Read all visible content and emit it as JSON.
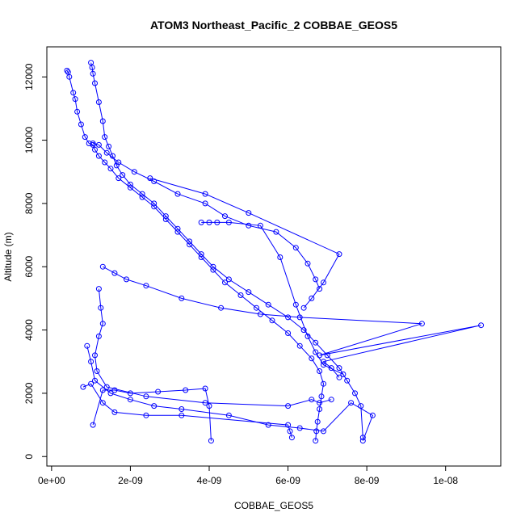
{
  "chart_data": {
    "type": "scatter",
    "title": "ATOM3 Northeast_Pacific_2 COBBAE_GEOS5",
    "xlabel": "COBBAE_GEOS5",
    "ylabel": "Altitude (m)",
    "xlim": [
      -1.2e-10,
      1.14e-08
    ],
    "ylim": [
      -300,
      12950
    ],
    "xticks": [
      {
        "value": 0,
        "label": "0e+00"
      },
      {
        "value": 2e-09,
        "label": "2e-09"
      },
      {
        "value": 4e-09,
        "label": "4e-09"
      },
      {
        "value": 6e-09,
        "label": "6e-09"
      },
      {
        "value": 8e-09,
        "label": "8e-09"
      },
      {
        "value": 1e-08,
        "label": "1e-08"
      }
    ],
    "yticks": [
      {
        "value": 0,
        "label": "0"
      },
      {
        "value": 2000,
        "label": "2000"
      },
      {
        "value": 4000,
        "label": "4000"
      },
      {
        "value": 6000,
        "label": "6000"
      },
      {
        "value": 8000,
        "label": "8000"
      },
      {
        "value": 10000,
        "label": "10000"
      },
      {
        "value": 12000,
        "label": "12000"
      }
    ],
    "grid": false,
    "legend": "none",
    "color": "#0000ff",
    "series": [
      {
        "x": [
          3.9e-10,
          4.2e-10,
          4.5e-10,
          5.5e-10,
          6e-10,
          6.5e-10,
          7.5e-10,
          8.5e-10,
          9.5e-10,
          1.05e-09,
          1.1e-09,
          1.2e-09,
          1.35e-09,
          1.5e-09,
          1.7e-09,
          2e-09,
          2.3e-09,
          2.6e-09,
          2.9e-09,
          3.2e-09,
          3.5e-09,
          3.8e-09,
          4.1e-09,
          4.4e-09,
          4.8e-09,
          5.2e-09,
          5.6e-09,
          6e-09,
          6.3e-09,
          6.6e-09,
          6.8e-09,
          6.9e-09,
          6.85e-09,
          6.8e-09,
          6.75e-09,
          6.72e-09,
          6.7e-09
        ],
        "y": [
          12200,
          12150,
          12000,
          11500,
          11300,
          10900,
          10500,
          10100,
          9900,
          9850,
          9700,
          9500,
          9300,
          9100,
          8800,
          8500,
          8200,
          7900,
          7500,
          7100,
          6700,
          6300,
          5900,
          5500,
          5100,
          4700,
          4300,
          3900,
          3500,
          3100,
          2700,
          2300,
          1900,
          1500,
          1100,
          800,
          500
        ]
      },
      {
        "x": [
          1e-09,
          1.03e-09,
          1.05e-09,
          1.1e-09,
          1.2e-09,
          1.3e-09,
          1.35e-09,
          1.45e-09,
          1.55e-09,
          1.65e-09,
          1.8e-09,
          2e-09,
          2.3e-09,
          2.6e-09,
          2.9e-09,
          3.2e-09,
          3.5e-09,
          3.8e-09,
          4.1e-09,
          4.5e-09,
          5e-09,
          5.5e-09,
          6e-09,
          6.4e-09,
          6.7e-09,
          7e-09,
          7.3e-09,
          7.5e-09,
          7.7e-09,
          7.85e-09,
          7.9e-09
        ],
        "y": [
          12450,
          12300,
          12100,
          11800,
          11200,
          10600,
          10100,
          9800,
          9500,
          9200,
          8900,
          8600,
          8300,
          8000,
          7600,
          7200,
          6800,
          6400,
          6000,
          5600,
          5200,
          4800,
          4400,
          4000,
          3600,
          3200,
          2800,
          2400,
          2000,
          1600,
          600
        ]
      },
      {
        "x": [
          1.05e-09,
          1.2e-09,
          1.4e-09,
          1.7e-09,
          2.1e-09,
          2.6e-09,
          3.2e-09,
          3.9e-09,
          4.4e-09,
          5e-09,
          5.7e-09,
          6.2e-09,
          6.5e-09,
          6.7e-09,
          6.8e-09
        ],
        "y": [
          9900,
          9850,
          9600,
          9300,
          9000,
          8700,
          8300,
          8000,
          7600,
          7300,
          7100,
          6600,
          6100,
          5600,
          5300
        ]
      },
      {
        "x": [
          2.5e-09,
          3.9e-09,
          5e-09,
          7.3e-09,
          6.9e-09,
          6.6e-09,
          6.4e-09
        ],
        "y": [
          8800,
          8300,
          7700,
          6400,
          5500,
          5000,
          4700
        ]
      },
      {
        "x": [
          1.3e-09,
          1.6e-09,
          1.9e-09,
          2.4e-09,
          3.3e-09,
          4.3e-09,
          5.3e-09,
          6.3e-09,
          9.4e-09,
          6.8e-09,
          1.09e-08,
          6.9e-09,
          7.1e-09,
          7.3e-09
        ],
        "y": [
          6000,
          5800,
          5600,
          5400,
          5000,
          4700,
          4500,
          4400,
          4200,
          3200,
          4150,
          3000,
          2800,
          2500
        ]
      },
      {
        "x": [
          1.2e-09,
          1.25e-09,
          1.3e-09,
          1.2e-09,
          1.1e-09,
          1.15e-09,
          1.4e-09,
          2.4e-09,
          3.9e-09,
          6e-09,
          6.6e-09,
          6.8e-09,
          7.1e-09
        ],
        "y": [
          5300,
          4700,
          4200,
          3800,
          3200,
          2700,
          2200,
          1900,
          1700,
          1600,
          1800,
          1700,
          1800
        ]
      },
      {
        "x": [
          8e-10,
          1e-09,
          1.3e-09,
          1.6e-09,
          2.4e-09,
          3.3e-09,
          6e-09,
          6.05e-09,
          6.1e-09
        ],
        "y": [
          2200,
          2300,
          1700,
          1400,
          1300,
          1300,
          1000,
          800,
          600
        ]
      },
      {
        "x": [
          1.05e-09,
          1.3e-09,
          1.6e-09,
          2e-09,
          2.7e-09,
          3.4e-09,
          3.9e-09,
          4e-09,
          4.05e-09
        ],
        "y": [
          1000,
          2100,
          2100,
          2000,
          2050,
          2100,
          2150,
          1600,
          500
        ]
      },
      {
        "x": [
          9e-10,
          1e-09,
          1.1e-09,
          1.5e-09,
          2e-09,
          2.6e-09,
          3.3e-09,
          4.5e-09,
          5.5e-09,
          6.3e-09,
          6.9e-09,
          7.6e-09,
          8.15e-09,
          7.9e-09
        ],
        "y": [
          3500,
          3000,
          2400,
          2000,
          1800,
          1600,
          1500,
          1300,
          1000,
          900,
          800,
          1700,
          1300,
          500
        ]
      },
      {
        "x": [
          3.8e-09,
          4e-09,
          4.2e-09,
          4.5e-09,
          5.3e-09,
          5.8e-09,
          6.2e-09,
          6.5e-09,
          6.7e-09,
          6.9e-09,
          7.4e-09
        ],
        "y": [
          7400,
          7400,
          7400,
          7400,
          7300,
          6300,
          4800,
          3800,
          3300,
          2900,
          2600
        ]
      }
    ]
  }
}
